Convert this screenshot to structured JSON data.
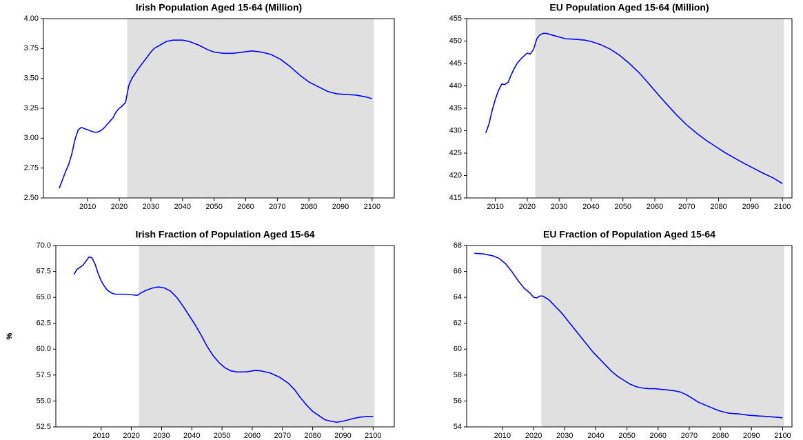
{
  "chart_data": [
    {
      "type": "line",
      "title": "Irish Population Aged 15-64 (Million)",
      "color": "#0000ff",
      "shaded_span": [
        2022.5,
        2100.5
      ],
      "x": [
        2001,
        2002,
        2003,
        2004,
        2005,
        2006,
        2007,
        2008,
        2009,
        2010,
        2011,
        2012,
        2013,
        2014,
        2015,
        2016,
        2017,
        2018,
        2019,
        2020,
        2021,
        2022,
        2023,
        2024,
        2026,
        2028,
        2030,
        2031,
        2033,
        2035,
        2037,
        2040,
        2042,
        2045,
        2048,
        2050,
        2053,
        2056,
        2059,
        2062,
        2065,
        2068,
        2071,
        2074,
        2077,
        2080,
        2083,
        2086,
        2089,
        2092,
        2095,
        2098,
        2100
      ],
      "values": [
        2.58,
        2.65,
        2.72,
        2.78,
        2.87,
        2.99,
        3.07,
        3.09,
        3.08,
        3.07,
        3.06,
        3.05,
        3.05,
        3.06,
        3.08,
        3.11,
        3.14,
        3.17,
        3.22,
        3.25,
        3.27,
        3.3,
        3.44,
        3.5,
        3.58,
        3.65,
        3.72,
        3.75,
        3.78,
        3.81,
        3.82,
        3.82,
        3.81,
        3.78,
        3.74,
        3.72,
        3.71,
        3.71,
        3.72,
        3.73,
        3.72,
        3.7,
        3.66,
        3.6,
        3.53,
        3.47,
        3.43,
        3.39,
        3.37,
        3.365,
        3.36,
        3.345,
        3.33
      ],
      "xlim": [
        1996,
        2107
      ],
      "xticks": [
        2010,
        2020,
        2030,
        2040,
        2050,
        2060,
        2070,
        2080,
        2090,
        2100
      ],
      "ylim": [
        2.5,
        4.0
      ],
      "yticks": [
        {
          "value": 2.5,
          "label": "2.50"
        },
        2.75,
        {
          "value": 3.0,
          "label": "3.00"
        },
        3.25,
        {
          "value": 3.5,
          "label": "3.50"
        },
        3.75,
        {
          "value": 4.0,
          "label": "4.00"
        }
      ]
    },
    {
      "type": "line",
      "title": "EU Population Aged 15-64 (Million)",
      "color": "#0000ff",
      "shaded_span": [
        2022.5,
        2100.5
      ],
      "x": [
        2007,
        2008,
        2009,
        2010,
        2011,
        2012,
        2013,
        2014,
        2015,
        2016,
        2017,
        2018,
        2019,
        2020,
        2021,
        2022,
        2023,
        2024,
        2025,
        2026,
        2028,
        2030,
        2032,
        2035,
        2038,
        2040,
        2043,
        2046,
        2049,
        2052,
        2055,
        2058,
        2061,
        2064,
        2067,
        2070,
        2073,
        2076,
        2079,
        2082,
        2085,
        2088,
        2091,
        2094,
        2097,
        2100
      ],
      "values": [
        429.5,
        431.5,
        434.5,
        437,
        439,
        440.4,
        440.3,
        440.8,
        442.5,
        444,
        445.2,
        446,
        446.7,
        447.3,
        447.1,
        448.2,
        450.5,
        451.4,
        451.7,
        451.7,
        451.3,
        450.9,
        450.5,
        450.4,
        450.2,
        449.9,
        449.2,
        448.2,
        446.8,
        445,
        443,
        440.6,
        438.1,
        435.7,
        433.4,
        431.3,
        429.5,
        427.9,
        426.5,
        425.1,
        423.9,
        422.7,
        421.6,
        420.5,
        419.5,
        418.2
      ],
      "xlim": [
        2001,
        2103
      ],
      "xticks": [
        2010,
        2020,
        2030,
        2040,
        2050,
        2060,
        2070,
        2080,
        2090,
        2100
      ],
      "ylim": [
        415,
        455
      ],
      "yticks": [
        415,
        420,
        425,
        430,
        435,
        440,
        445,
        450,
        455
      ]
    },
    {
      "type": "line",
      "title": "Irish Fraction of Population Aged 15-64",
      "ylabel": "%",
      "color": "#0000ff",
      "shaded_span": [
        2022.5,
        2100.5
      ],
      "x": [
        2001,
        2002,
        2003,
        2004,
        2005,
        2006,
        2007,
        2008,
        2009,
        2010,
        2011,
        2012,
        2013,
        2014,
        2015,
        2016,
        2018,
        2020,
        2022,
        2023,
        2025,
        2027,
        2029,
        2031,
        2033,
        2035,
        2037,
        2039,
        2041,
        2043,
        2045,
        2047,
        2049,
        2051,
        2053,
        2055,
        2058,
        2061,
        2063,
        2066,
        2069,
        2072,
        2074,
        2076,
        2078,
        2080,
        2082,
        2084,
        2086,
        2088,
        2090,
        2092,
        2094,
        2096,
        2098,
        2100
      ],
      "values": [
        67.2,
        67.7,
        67.9,
        68.1,
        68.5,
        68.9,
        68.8,
        68.2,
        67.3,
        66.6,
        66.1,
        65.7,
        65.5,
        65.35,
        65.3,
        65.3,
        65.3,
        65.25,
        65.2,
        65.4,
        65.7,
        65.9,
        66.0,
        65.9,
        65.6,
        65.0,
        64.2,
        63.3,
        62.4,
        61.4,
        60.3,
        59.4,
        58.7,
        58.2,
        57.9,
        57.8,
        57.8,
        57.95,
        57.9,
        57.7,
        57.3,
        56.7,
        56.1,
        55.3,
        54.6,
        54.0,
        53.6,
        53.2,
        53.05,
        52.95,
        53.05,
        53.2,
        53.35,
        53.45,
        53.5,
        53.5
      ],
      "xlim": [
        1995,
        2107
      ],
      "xticks": [
        2010,
        2020,
        2030,
        2040,
        2050,
        2060,
        2070,
        2080,
        2090,
        2100
      ],
      "ylim": [
        52.5,
        70
      ],
      "yticks": [
        52.5,
        {
          "value": 55,
          "label": "55.0"
        },
        57.5,
        {
          "value": 60,
          "label": "60.0"
        },
        62.5,
        {
          "value": 65,
          "label": "65.0"
        },
        67.5,
        {
          "value": 70,
          "label": "70.0"
        }
      ]
    },
    {
      "type": "line",
      "title": "EU Fraction of Population Aged 15-64",
      "ylabel": "%",
      "color": "#0000ff",
      "shaded_span": [
        2022.5,
        2100.5
      ],
      "x": [
        2001,
        2004,
        2007,
        2009,
        2011,
        2013,
        2015,
        2017,
        2019,
        2020,
        2021,
        2022,
        2023,
        2025,
        2027,
        2029,
        2031,
        2033,
        2035,
        2037,
        2039,
        2041,
        2043,
        2045,
        2047,
        2049,
        2051,
        2053,
        2055,
        2057,
        2059,
        2061,
        2063,
        2065,
        2067,
        2069,
        2071,
        2073,
        2075,
        2077,
        2079,
        2081,
        2083,
        2086,
        2089,
        2092,
        2095,
        2098,
        2100
      ],
      "values": [
        67.4,
        67.35,
        67.2,
        67.0,
        66.6,
        66.0,
        65.3,
        64.7,
        64.3,
        64.0,
        63.95,
        64.1,
        64.1,
        63.8,
        63.3,
        62.8,
        62.2,
        61.6,
        61.0,
        60.4,
        59.8,
        59.3,
        58.8,
        58.3,
        57.9,
        57.6,
        57.3,
        57.1,
        57.0,
        56.95,
        56.95,
        56.9,
        56.85,
        56.8,
        56.7,
        56.5,
        56.2,
        55.9,
        55.7,
        55.5,
        55.3,
        55.15,
        55.05,
        55.0,
        54.9,
        54.85,
        54.8,
        54.75,
        54.7
      ],
      "xlim": [
        1998.5,
        2103
      ],
      "xticks": [
        2010,
        2020,
        2030,
        2040,
        2050,
        2060,
        2070,
        2080,
        2090,
        2100
      ],
      "ylim": [
        54,
        68
      ],
      "yticks": [
        54,
        56,
        58,
        60,
        62,
        64,
        66,
        68
      ]
    }
  ]
}
